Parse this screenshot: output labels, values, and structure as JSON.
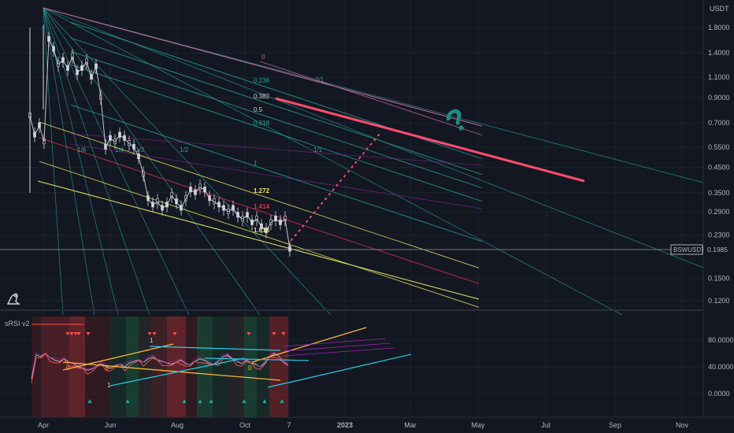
{
  "header": {
    "currency": "USDT"
  },
  "indicator": {
    "name": "sRSI v2"
  },
  "price_tag": {
    "symbol": "BSWUSDT",
    "value": "0.1985"
  },
  "chart_data": [
    {
      "type": "line",
      "title": "",
      "yscale": "log",
      "currency": "USDT",
      "x_ticks": [
        "Apr",
        "Jun",
        "Aug",
        "Oct",
        "7",
        "2023",
        "Mar",
        "May",
        "Jul",
        "Sep",
        "Nov"
      ],
      "y_ticks": [
        1.8,
        1.4,
        1.1,
        0.9,
        0.7,
        0.55,
        0.45,
        0.35,
        0.29,
        0.23,
        0.15,
        0.12
      ],
      "y_tick_labels": [
        "1.8000",
        "1.4000",
        "1.1000",
        "0.9000",
        "0.7000",
        "0.5500",
        "0.4500",
        "0.3500",
        "0.2900",
        "0.2300",
        "0.1500",
        "0.1200"
      ],
      "last_price": 0.1985,
      "symbol": "BSWUSDT",
      "fib_levels": [
        "0",
        "0.236",
        "0.382",
        "0.5",
        "0.618",
        "1",
        "1.272",
        "1.414",
        "1.618"
      ],
      "fan_labels": [
        "2/1",
        "1/1",
        "1/2",
        "1/3",
        "1/4",
        "1/8"
      ],
      "series_close": [
        0.75,
        0.62,
        0.68,
        0.58,
        1.6,
        1.45,
        1.25,
        1.3,
        1.2,
        1.35,
        1.15,
        1.2,
        1.28,
        1.1,
        1.22,
        0.9,
        0.55,
        0.6,
        0.58,
        0.62,
        0.6,
        0.57,
        0.55,
        0.5,
        0.42,
        0.33,
        0.31,
        0.32,
        0.3,
        0.31,
        0.34,
        0.32,
        0.3,
        0.33,
        0.36,
        0.35,
        0.37,
        0.36,
        0.33,
        0.32,
        0.31,
        0.3,
        0.29,
        0.3,
        0.28,
        0.27,
        0.28,
        0.26,
        0.27,
        0.25,
        0.24,
        0.26,
        0.27,
        0.26,
        0.27,
        0.2
      ]
    },
    {
      "type": "line",
      "name": "sRSI v2",
      "y_ticks": [
        80,
        40,
        0
      ],
      "y_tick_labels": [
        "80.0000",
        "40.0000",
        "0.0000"
      ],
      "marker_labels": [
        "0",
        "1"
      ],
      "series": [
        22,
        58,
        55,
        60,
        54,
        50,
        48,
        52,
        47,
        45,
        40,
        38,
        35,
        37,
        42,
        45,
        40,
        38,
        42,
        44,
        40,
        46,
        48,
        50,
        47,
        52,
        55,
        50,
        48,
        46,
        44,
        47,
        50,
        45,
        43,
        48,
        52,
        50,
        46,
        44,
        48,
        55,
        58,
        52,
        48,
        45,
        50,
        46,
        44,
        40,
        46,
        55,
        60,
        56,
        48,
        42
      ]
    }
  ]
}
